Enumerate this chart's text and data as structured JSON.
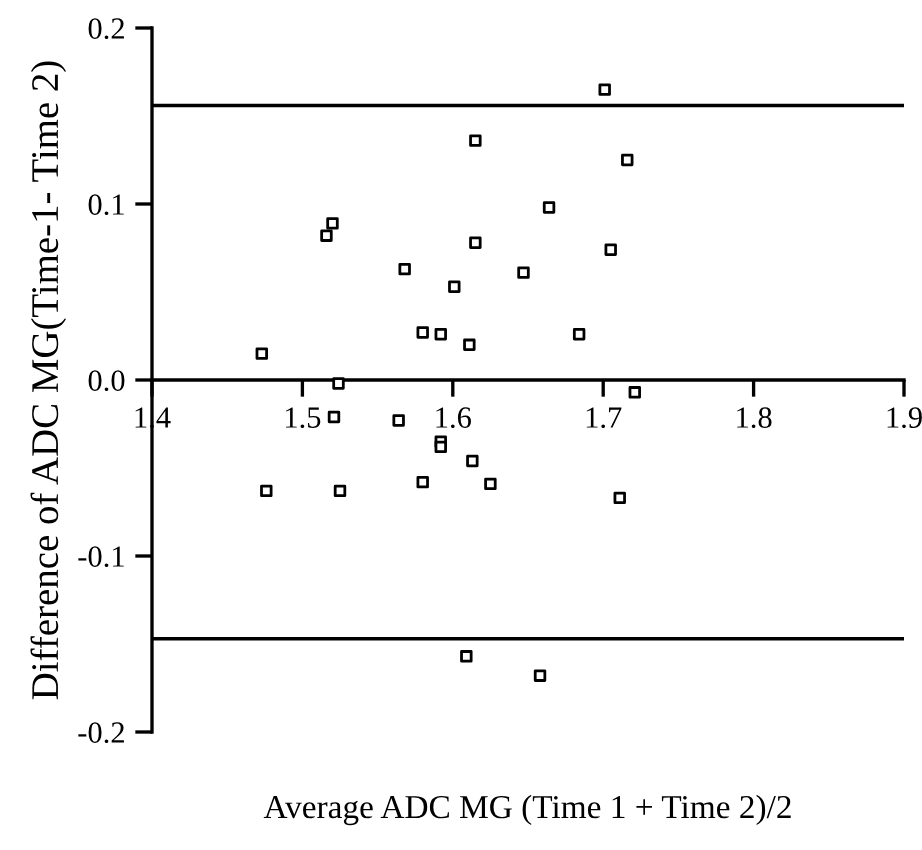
{
  "chart_data": {
    "type": "scatter",
    "xlabel": "Average ADC MG (Time 1 + Time 2)/2",
    "ylabel": "Difference of ADC MG(Time-1- Time 2)",
    "x": [
      1.701,
      1.615,
      1.716,
      1.52,
      1.516,
      1.664,
      1.615,
      1.705,
      1.568,
      1.647,
      1.601,
      1.58,
      1.592,
      1.684,
      1.611,
      1.473,
      1.524,
      1.721,
      1.521,
      1.564,
      1.592,
      1.592,
      1.613,
      1.476,
      1.525,
      1.58,
      1.625,
      1.711,
      1.609,
      1.658
    ],
    "values": [
      0.165,
      0.136,
      0.125,
      0.089,
      0.082,
      0.098,
      0.078,
      0.074,
      0.063,
      0.061,
      0.053,
      0.027,
      0.026,
      0.026,
      0.02,
      0.015,
      -0.002,
      -0.007,
      -0.021,
      -0.023,
      -0.035,
      -0.038,
      -0.046,
      -0.063,
      -0.063,
      -0.058,
      -0.059,
      -0.067,
      -0.157,
      -0.168
    ],
    "color": "#000000",
    "marker": "square",
    "xlim": [
      1.4,
      1.9
    ],
    "xticks": [
      1.4,
      1.5,
      1.6,
      1.7,
      1.8,
      1.9
    ],
    "ylim": [
      -0.2,
      0.2
    ],
    "yticks": [
      {
        "value": -0.2,
        "label": "-0.2"
      },
      {
        "value": -0.1,
        "label": "-0.1"
      },
      {
        "value": 0,
        "label": "0.0"
      },
      {
        "value": 0.1,
        "label": "0.1"
      },
      {
        "value": 0.2,
        "label": "0.2"
      }
    ],
    "ref_lines": [
      {
        "axis": "y",
        "value": 0.156,
        "color": "#000000"
      },
      {
        "axis": "y",
        "value": -0.147,
        "color": "#000000"
      }
    ],
    "legend": false
  }
}
